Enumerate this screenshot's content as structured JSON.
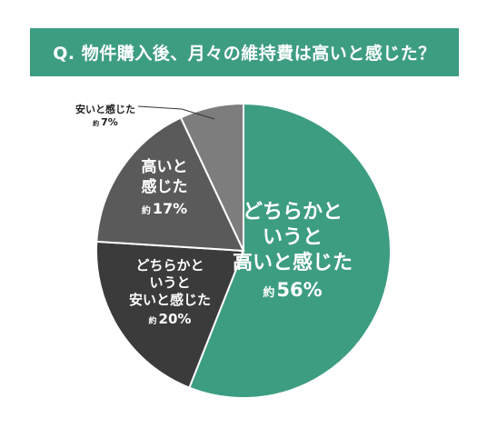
{
  "title": "Q. 物件購入後、月々の維持費は高いと感じた？",
  "colors": {
    "title_bg": "#3d9d80",
    "title_text": "#ffffff"
  },
  "chart_data": {
    "type": "pie",
    "title": "Q. 物件購入後、月々の維持費は高いと感じた？",
    "start": "12 o'clock, clockwise",
    "slices": [
      {
        "label_lines": [
          "どちらかと",
          "いうと",
          "高いと感じた"
        ],
        "value_prefix": "約",
        "value_text": "56%",
        "value": 56,
        "color": "#3d9d80",
        "label_color": "#ffffff"
      },
      {
        "label_lines": [
          "どちらかと",
          "いうと",
          "安いと感じた"
        ],
        "value_prefix": "約",
        "value_text": "20%",
        "value": 20,
        "color": "#3b3b3b",
        "label_color": "#ffffff"
      },
      {
        "label_lines": [
          "高いと",
          "感じた"
        ],
        "value_prefix": "約",
        "value_text": "17%",
        "value": 17,
        "color": "#5a5a5a",
        "label_color": "#ffffff"
      },
      {
        "label_lines": [
          "安いと感じた"
        ],
        "value_prefix": "約",
        "value_text": "7%",
        "value": 7,
        "color": "#7d7d7d",
        "label_color": "#222222",
        "outside": true
      }
    ]
  }
}
